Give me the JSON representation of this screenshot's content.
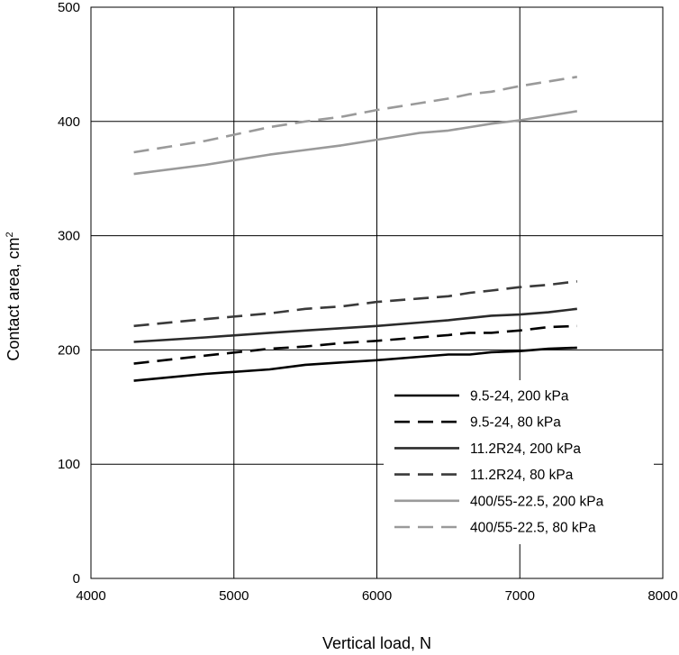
{
  "chart_data": {
    "type": "line",
    "title": "",
    "xlabel": "Vertical load, N",
    "ylabel": "Contact area, cm²",
    "ylabel_main": "Contact area, cm",
    "ylabel_sup": "2",
    "xlim": [
      4000,
      8000
    ],
    "ylim": [
      0,
      500
    ],
    "xticks": [
      4000,
      5000,
      6000,
      7000,
      8000
    ],
    "yticks": [
      0,
      100,
      200,
      300,
      400,
      500
    ],
    "grid": true,
    "legend_position": "bottom-right",
    "x": [
      4300,
      4800,
      5250,
      5500,
      5750,
      6000,
      6300,
      6500,
      6650,
      6800,
      7000,
      7200,
      7400
    ],
    "series": [
      {
        "name": "9.5-24, 200 kPa",
        "color": "#000000",
        "dash": "solid",
        "values": [
          173,
          179,
          183,
          187,
          189,
          191,
          194,
          196,
          196,
          198,
          199,
          201,
          202
        ]
      },
      {
        "name": "9.5-24, 80 kPa",
        "color": "#000000",
        "dash": "dashed",
        "values": [
          188,
          195,
          201,
          203,
          206,
          208,
          211,
          213,
          215,
          215,
          217,
          220,
          221
        ]
      },
      {
        "name": "11.2R24, 200 kPa",
        "color": "#2b2b2b",
        "dash": "solid",
        "values": [
          207,
          211,
          215,
          217,
          219,
          221,
          224,
          226,
          228,
          230,
          231,
          233,
          236
        ]
      },
      {
        "name": "11.2R24, 80 kPa",
        "color": "#3a3a3a",
        "dash": "dashed",
        "values": [
          221,
          227,
          232,
          236,
          238,
          242,
          245,
          247,
          250,
          252,
          255,
          257,
          260
        ]
      },
      {
        "name": "400/55-22.5, 200 kPa",
        "color": "#9a9a9a",
        "dash": "solid",
        "values": [
          354,
          362,
          371,
          375,
          379,
          384,
          390,
          392,
          395,
          398,
          401,
          405,
          409
        ]
      },
      {
        "name": "400/55-22.5, 80 kPa",
        "color": "#9a9a9a",
        "dash": "dashed",
        "values": [
          373,
          383,
          395,
          400,
          404,
          410,
          416,
          420,
          424,
          426,
          431,
          435,
          439
        ]
      }
    ]
  }
}
